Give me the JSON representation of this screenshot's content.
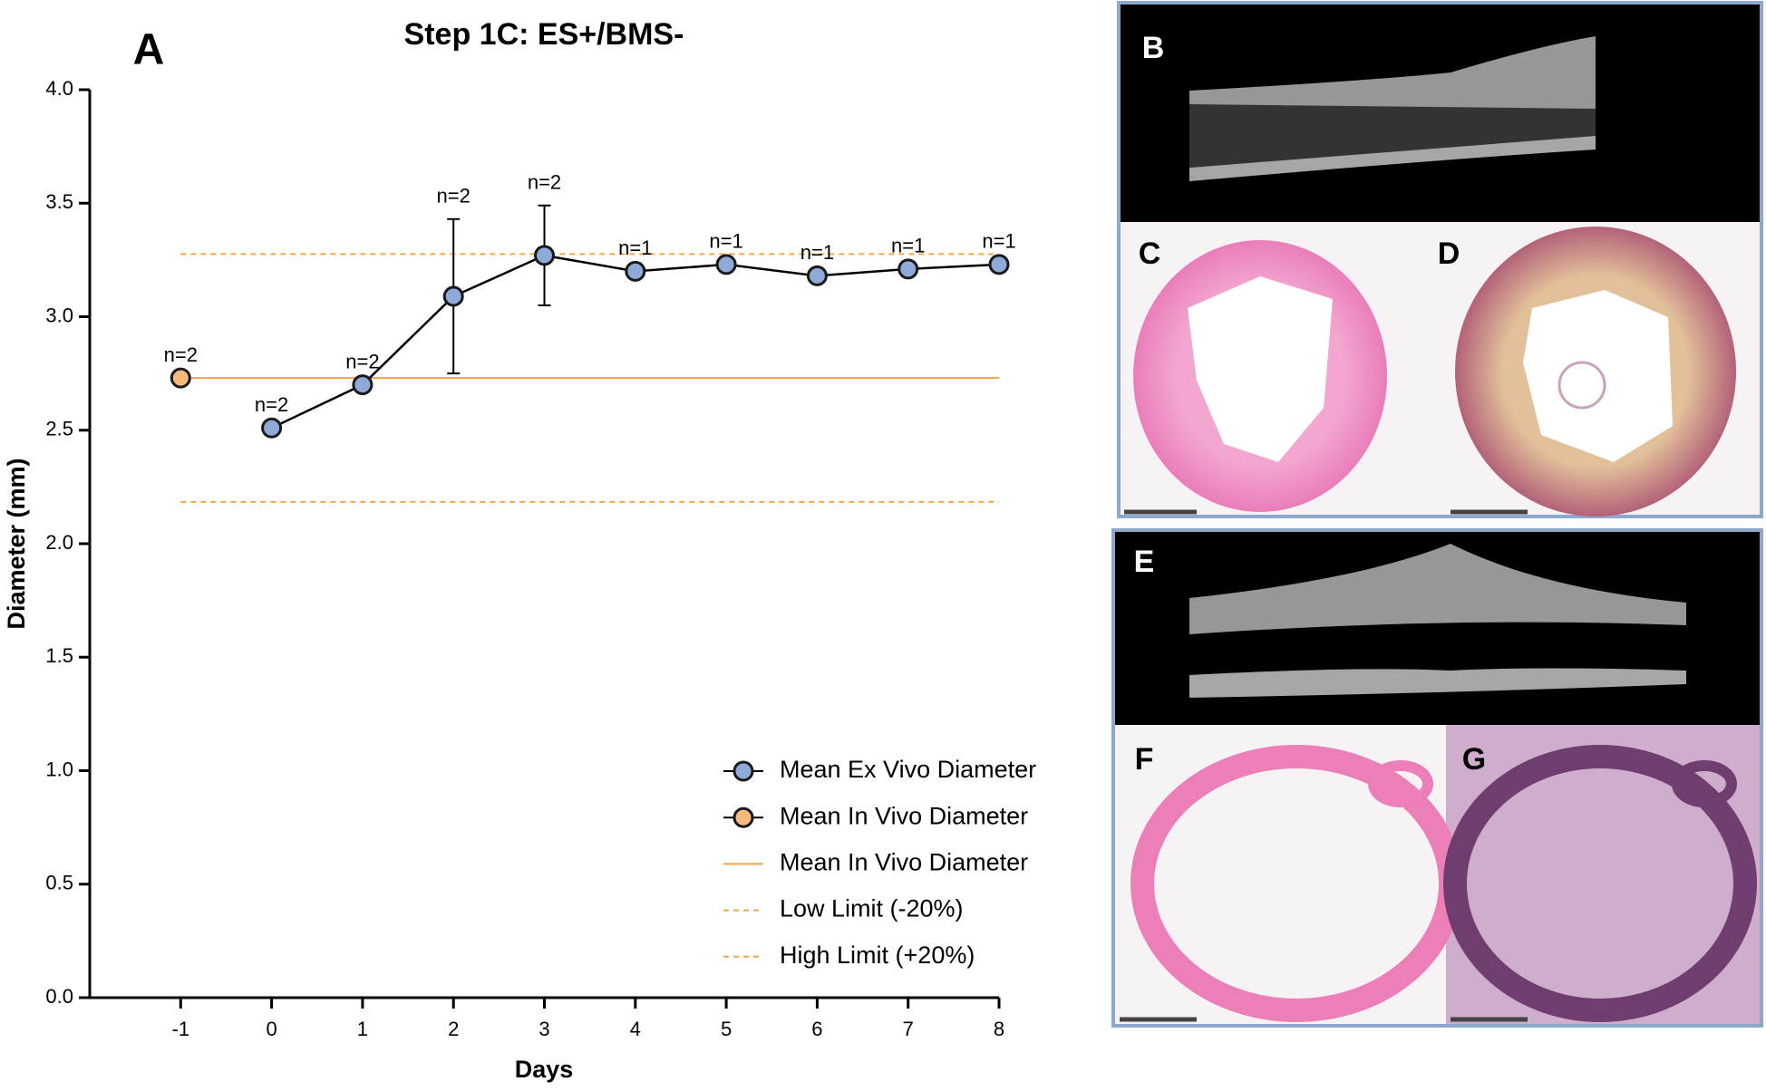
{
  "chart_data": {
    "type": "line",
    "title": "Step 1C: ES+/BMS-",
    "panel_label": "A",
    "x_label": "Days",
    "y_label": "Diameter (mm)",
    "xlim": [
      -2,
      8
    ],
    "xticks": [
      -1,
      0,
      1,
      2,
      3,
      4,
      5,
      6,
      7,
      8
    ],
    "ylim": [
      0,
      4
    ],
    "yticks": [
      {
        "value": 0,
        "label": "0.0"
      },
      {
        "value": 0.5,
        "label": "0.5"
      },
      {
        "value": 1,
        "label": "1.0"
      },
      {
        "value": 1.5,
        "label": "1.5"
      },
      {
        "value": 2,
        "label": "2.0"
      },
      {
        "value": 2.5,
        "label": "2.5"
      },
      {
        "value": 3,
        "label": "3.0"
      },
      {
        "value": 3.5,
        "label": "3.5"
      },
      {
        "value": 4,
        "label": "4.0"
      }
    ],
    "series": [
      {
        "name": "Mean Ex Vivo Diameter",
        "color": "#8fa9d9",
        "line_color": "#000000",
        "x": [
          0,
          1,
          2,
          3,
          4,
          5,
          6,
          7,
          8
        ],
        "values": [
          2.51,
          2.7,
          3.09,
          3.27,
          3.2,
          3.23,
          3.18,
          3.21,
          3.23
        ],
        "errors": [
          null,
          null,
          0.34,
          0.22,
          null,
          null,
          null,
          null,
          null
        ],
        "n_labels": [
          "n=2",
          "n=2",
          "n=2",
          "n=2",
          "n=1",
          "n=1",
          "n=1",
          "n=1",
          "n=1"
        ]
      },
      {
        "name": "Mean In Vivo Diameter",
        "color": "#f7b97c",
        "x": [
          -1
        ],
        "values": [
          2.73
        ],
        "n_labels": [
          "n=2"
        ]
      }
    ],
    "reference_lines": [
      {
        "name": "Mean In Vivo Diameter",
        "value": 2.73,
        "dashed": false
      },
      {
        "name": "Low Limit (-20%)",
        "value": 2.184,
        "dashed": true
      },
      {
        "name": "High Limit (+20%)",
        "value": 3.276,
        "dashed": true
      }
    ],
    "reference_color": "#f5a54a"
  },
  "panels": {
    "labels": [
      "B",
      "C",
      "D",
      "E",
      "F",
      "G"
    ]
  }
}
